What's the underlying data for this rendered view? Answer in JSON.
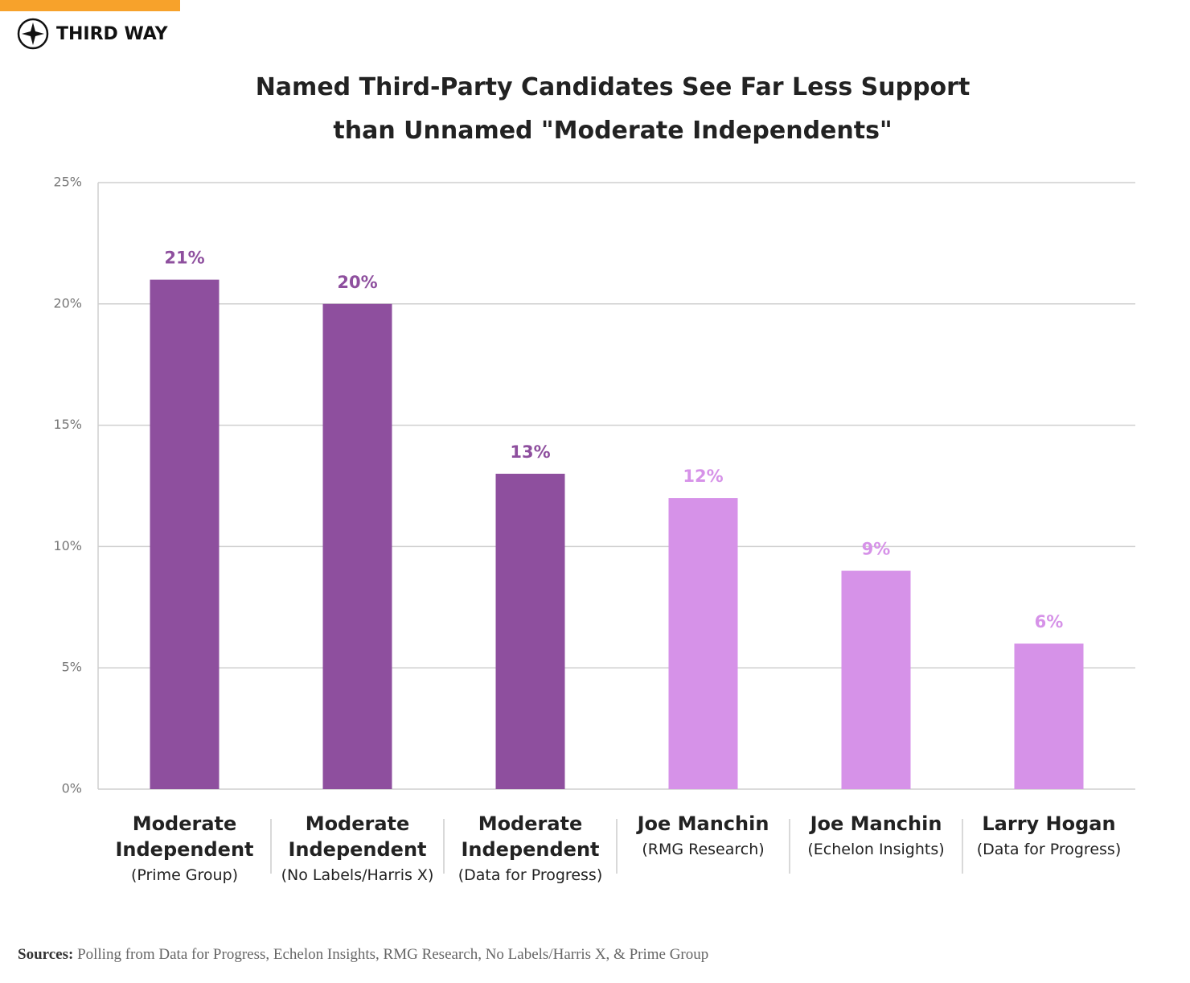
{
  "brand": "THIRD WAY",
  "chart_data": {
    "type": "bar",
    "title": "Named Third-Party Candidates See Far Less Support than Unnamed \"Moderate Independents\"",
    "categories": [
      "Moderate Independent",
      "Moderate Independent",
      "Moderate Independent",
      "Joe Manchin",
      "Joe Manchin",
      "Larry Hogan"
    ],
    "category_sources": [
      "(Prime Group)",
      "(No Labels/Harris X)",
      "(Data for Progress)",
      "(RMG Research)",
      "(Echelon Insights)",
      "(Data for Progress)"
    ],
    "values": [
      21,
      20,
      13,
      12,
      9,
      6
    ],
    "value_labels": [
      "21%",
      "20%",
      "13%",
      "12%",
      "9%",
      "6%"
    ],
    "colors": [
      "#8e4f9e",
      "#8e4f9e",
      "#8e4f9e",
      "#d692e8",
      "#d692e8",
      "#d692e8"
    ],
    "ylim": [
      0,
      25
    ],
    "yticks": [
      {
        "value": 0,
        "label": "0%"
      },
      {
        "value": 5,
        "label": "5%"
      },
      {
        "value": 10,
        "label": "10%"
      },
      {
        "value": 15,
        "label": "15%"
      },
      {
        "value": 20,
        "label": "20%"
      },
      {
        "value": 25,
        "label": "25%"
      }
    ],
    "grid": true
  },
  "footer": {
    "label": "Sources:",
    "text": "Polling from Data for Progress, Echelon Insights, RMG Research, No Labels/Harris X, & Prime Group"
  }
}
